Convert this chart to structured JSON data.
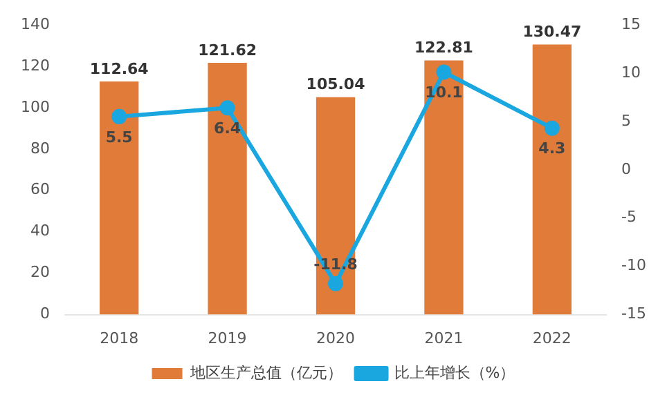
{
  "chart_data": {
    "type": "bar",
    "categories": [
      "2018",
      "2019",
      "2020",
      "2021",
      "2022"
    ],
    "series": [
      {
        "name": "地区生产总值（亿元）",
        "color": "#e07b39",
        "values": [
          112.64,
          121.62,
          105.04,
          122.81,
          130.47
        ]
      },
      {
        "name": "比上年增长（%）",
        "type": "line",
        "axis": "y2",
        "color": "#1aa7e0",
        "values": [
          5.5,
          6.4,
          -11.8,
          10.1,
          4.3
        ]
      }
    ],
    "ylim": [
      0,
      140
    ],
    "yticks": [
      0,
      20,
      40,
      60,
      80,
      100,
      120,
      140
    ],
    "y2lim": [
      -15,
      15
    ],
    "y2ticks": [
      -15,
      -10,
      -5,
      0,
      5,
      10,
      15
    ],
    "data_labels": true,
    "legend": "bottom",
    "grid": false,
    "marker": "circle"
  }
}
